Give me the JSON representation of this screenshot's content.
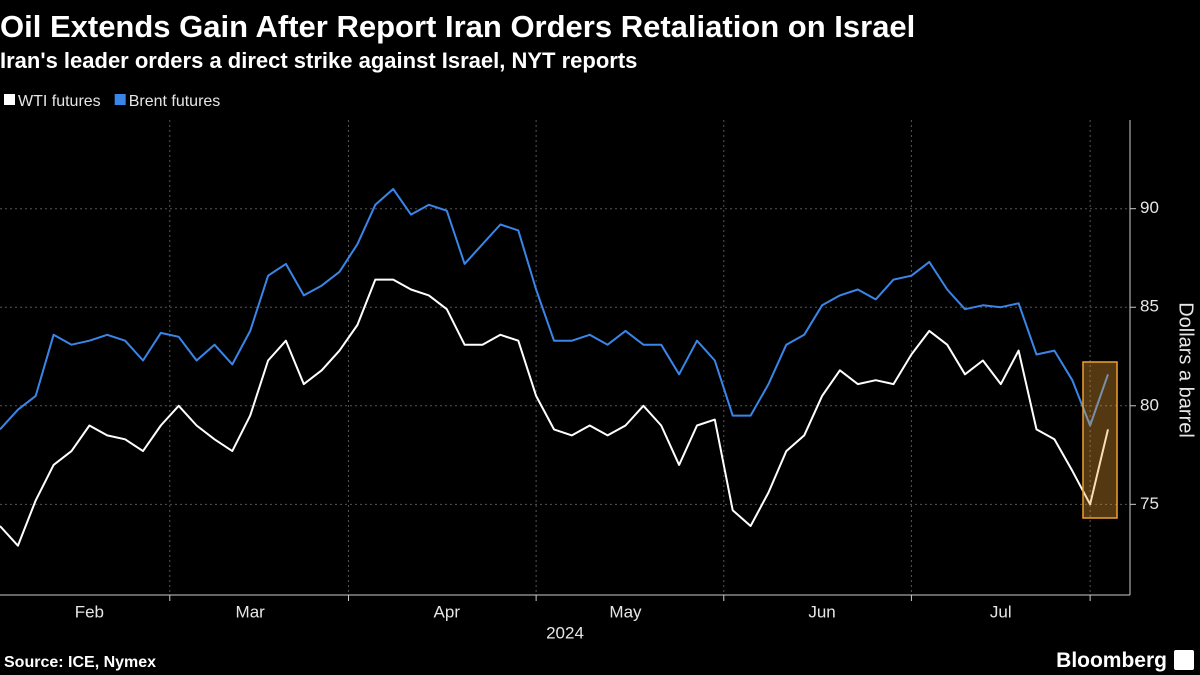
{
  "chart_data": {
    "type": "line",
    "title": "Oil Extends Gain After Report Iran Orders Retaliation on Israel",
    "subtitle": "Iran's leader orders a direct strike against Israel, NYT reports",
    "y_axis_label": "Dollars a barrel",
    "x_axis_label": "2024",
    "source": "Source: ICE, Nymex",
    "brand": "Bloomberg",
    "categories": [
      null,
      null,
      null,
      null,
      null,
      "Feb",
      null,
      null,
      null,
      null,
      null,
      null,
      null,
      null,
      "Mar",
      null,
      null,
      null,
      null,
      null,
      null,
      null,
      null,
      null,
      null,
      "Apr",
      null,
      null,
      null,
      null,
      null,
      null,
      null,
      null,
      null,
      "May",
      null,
      null,
      null,
      null,
      null,
      null,
      null,
      null,
      null,
      null,
      "Jun",
      null,
      null,
      null,
      null,
      null,
      null,
      null,
      null,
      null,
      "Jul",
      null,
      null,
      null,
      null,
      null,
      null
    ],
    "series": [
      {
        "name": "WTI futures",
        "color": "#ffffff",
        "values": [
          73.9,
          72.9,
          75.2,
          77.0,
          77.7,
          79.0,
          78.5,
          78.3,
          77.7,
          79.0,
          80.0,
          79.0,
          78.3,
          77.7,
          79.5,
          82.3,
          83.3,
          81.1,
          81.8,
          82.8,
          84.1,
          86.4,
          86.4,
          85.9,
          85.6,
          84.9,
          83.1,
          83.1,
          83.6,
          83.3,
          80.5,
          78.8,
          78.5,
          79.0,
          78.5,
          79.0,
          80.0,
          79.0,
          77.0,
          79.0,
          79.3,
          74.7,
          73.9,
          75.6,
          77.7,
          78.5,
          80.5,
          81.8,
          81.1,
          81.3,
          81.1,
          82.6,
          83.8,
          83.1,
          81.6,
          82.3,
          81.1,
          82.8,
          78.8,
          78.3,
          76.7,
          75.0,
          78.8
        ]
      },
      {
        "name": "Brent futures",
        "color": "#3a86e8",
        "values": [
          78.8,
          79.8,
          80.5,
          83.6,
          83.1,
          83.3,
          83.6,
          83.3,
          82.3,
          83.7,
          83.5,
          82.3,
          83.1,
          82.1,
          83.8,
          86.6,
          87.2,
          85.6,
          86.1,
          86.8,
          88.2,
          90.2,
          91.0,
          89.7,
          90.2,
          89.9,
          87.2,
          88.2,
          89.2,
          88.9,
          85.9,
          83.3,
          83.3,
          83.6,
          83.1,
          83.8,
          83.1,
          83.1,
          81.6,
          83.3,
          82.3,
          79.5,
          79.5,
          81.1,
          83.1,
          83.6,
          85.1,
          85.6,
          85.9,
          85.4,
          86.4,
          86.6,
          87.3,
          85.9,
          84.9,
          85.1,
          85.0,
          85.2,
          82.6,
          82.8,
          81.3,
          79.0,
          81.6
        ]
      }
    ],
    "ylim": [
      70.4,
      94.5
    ],
    "yticks": [
      75,
      80,
      85,
      90
    ],
    "grid": true,
    "legend": "top-left"
  }
}
